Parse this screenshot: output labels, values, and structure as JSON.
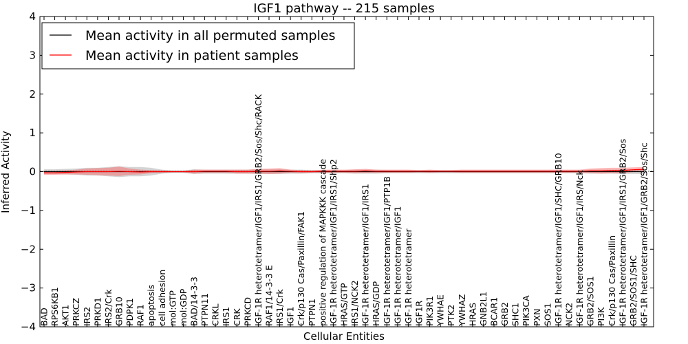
{
  "chart_data": {
    "type": "line",
    "title": "IGF1 pathway -- 215 samples",
    "xlabel": "Cellular Entities",
    "ylabel": "Inferred Activity",
    "ylim": [
      -4,
      4
    ],
    "yticks": [
      4,
      3,
      2,
      1,
      0,
      -1,
      -2,
      -3,
      -4
    ],
    "ytick_labels": [
      "4",
      "3",
      "2",
      "1",
      "0",
      "−1",
      "−2",
      "−3",
      "−4"
    ],
    "legend_position": "top-left",
    "categories": [
      "BAD",
      "RPS6KB1",
      "AKT1",
      "PRKCZ",
      "IRS2",
      "PRKD1",
      "IRS2/Crk",
      "GRB10",
      "PDPK1",
      "RAF1",
      "apoptosis",
      "cell adhesion",
      "mol:GTP",
      "mol:GDP",
      "BAD/14-3-3",
      "PTPN11",
      "CRKL",
      "IRS1",
      "CRK",
      "PRKCD",
      "IGF-1R heterotetramer/IGF1/IRS1/GRB2/Sos/Shc/RACK",
      "RAF1/14-3-3 E",
      "IRS1/Crk",
      "IGF1",
      "Crk/p130 Cas/Paxillin/FAK1",
      "PTPN1",
      "positive regulation of MAPKKK cascade",
      "IGF-1R heterotetramer/IGF1/IRS1/Shp2",
      "HRAS/GTP",
      "IRS1/NCK2",
      "IGF-1R heterotetramer/IGF1/IRS1",
      "HRAS/GDP",
      "IGF-1R heterotetramer/IGF1/PTP1B",
      "IGF-1R heterotetramer/IGF1",
      "IGF-1R heterotetramer",
      "IGF1R",
      "PIK3R1",
      "YWHAE",
      "PTK2",
      "YWHAZ",
      "HRAS",
      "GNB2L1",
      "BCAR1",
      "GRB2",
      "SHC1",
      "PIK3CA",
      "PXN",
      "SOS1",
      "IGF-1R heterotetramer/IGF1/SHC/GRB10",
      "NCK2",
      "IGF-1R heterotetramer/IGF1/IRS/Nck",
      "GRB2/SOS1",
      "PI3K",
      "Crk/p130 Cas/Paxillin",
      "IGF-1R heterotetramer/IGF1/IRS1/GRB2/Sos",
      "GRB2/SOS1/SHC",
      "IGF-1R heterotetramer/IGF1/GRB2/Sos/Shc"
    ],
    "series": [
      {
        "name": "Mean activity in all permuted samples",
        "color": "#000000",
        "band_color": "#b0b0b0",
        "values": [
          0.0,
          0.0,
          0.0,
          0.0,
          0.0,
          0.0,
          0.0,
          0.0,
          0.0,
          0.0,
          0.0,
          0.0,
          0.0,
          0.0,
          0.0,
          0.0,
          0.0,
          0.0,
          0.0,
          0.0,
          0.0,
          0.0,
          0.0,
          0.0,
          0.0,
          0.0,
          0.0,
          0.0,
          0.0,
          0.0,
          0.0,
          0.0,
          0.0,
          0.0,
          0.0,
          0.0,
          0.0,
          0.0,
          0.0,
          0.0,
          0.0,
          0.0,
          0.0,
          0.0,
          0.0,
          0.0,
          0.0,
          0.0,
          0.0,
          0.0,
          0.0,
          0.0,
          0.0,
          0.0,
          0.0,
          0.0,
          0.0
        ],
        "band": [
          0.06,
          0.06,
          0.07,
          0.08,
          0.1,
          0.1,
          0.12,
          0.14,
          0.12,
          0.12,
          0.1,
          0.05,
          0.03,
          0.03,
          0.06,
          0.05,
          0.05,
          0.05,
          0.05,
          0.05,
          0.06,
          0.06,
          0.06,
          0.05,
          0.05,
          0.04,
          0.04,
          0.04,
          0.04,
          0.05,
          0.05,
          0.05,
          0.04,
          0.04,
          0.04,
          0.04,
          0.04,
          0.04,
          0.04,
          0.04,
          0.04,
          0.04,
          0.04,
          0.04,
          0.04,
          0.04,
          0.04,
          0.04,
          0.04,
          0.04,
          0.04,
          0.05,
          0.05,
          0.05,
          0.06,
          0.06,
          0.06
        ]
      },
      {
        "name": "Mean activity in patient samples",
        "color": "#ff0000",
        "band_color": "#ff6060",
        "values": [
          -0.03,
          -0.03,
          -0.02,
          -0.01,
          0.0,
          0.0,
          0.0,
          0.01,
          0.0,
          -0.01,
          0.0,
          0.0,
          0.0,
          0.0,
          0.0,
          0.01,
          0.01,
          0.01,
          0.0,
          0.0,
          0.01,
          0.01,
          0.02,
          0.01,
          0.0,
          0.0,
          0.01,
          0.01,
          0.01,
          0.01,
          0.02,
          0.01,
          0.01,
          0.01,
          0.01,
          0.01,
          0.01,
          0.01,
          0.01,
          0.01,
          0.01,
          0.01,
          0.01,
          0.01,
          0.01,
          0.01,
          0.01,
          0.01,
          0.01,
          0.01,
          0.01,
          0.02,
          0.02,
          0.03,
          0.03,
          0.05,
          0.06
        ],
        "band": [
          0.05,
          0.05,
          0.05,
          0.06,
          0.08,
          0.09,
          0.1,
          0.12,
          0.08,
          0.06,
          0.04,
          0.03,
          0.02,
          0.02,
          0.05,
          0.04,
          0.04,
          0.04,
          0.05,
          0.05,
          0.06,
          0.07,
          0.07,
          0.04,
          0.04,
          0.03,
          0.04,
          0.04,
          0.04,
          0.05,
          0.05,
          0.04,
          0.04,
          0.04,
          0.04,
          0.03,
          0.04,
          0.03,
          0.03,
          0.04,
          0.04,
          0.04,
          0.04,
          0.04,
          0.04,
          0.04,
          0.04,
          0.04,
          0.04,
          0.04,
          0.04,
          0.06,
          0.07,
          0.07,
          0.07,
          0.06,
          0.06
        ]
      }
    ]
  }
}
